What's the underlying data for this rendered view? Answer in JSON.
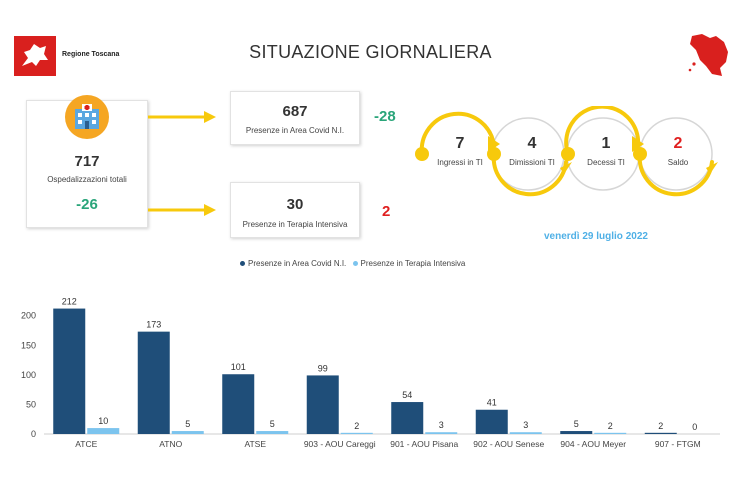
{
  "header": {
    "title": "SITUAZIONE GIORNALIERA",
    "logo_text": "Regione Toscana",
    "colors": {
      "logo_red": "#d9201e",
      "arrow_yellow": "#f7c90c",
      "dark_bar": "#1f4e79",
      "light_bar": "#7cc4ee"
    }
  },
  "total": {
    "value": "717",
    "label": "Ospedalizzazioni totali",
    "delta": "-26",
    "icon": "hospital-icon"
  },
  "covid_area": {
    "value": "687",
    "label": "Presenze in Area Covid N.I.",
    "delta": "-28"
  },
  "intensive": {
    "value": "30",
    "label": "Presenze in Terapia Intensiva",
    "delta": "2"
  },
  "flow": {
    "ingressi": {
      "value": "7",
      "label": "Ingressi in TI"
    },
    "dimissioni": {
      "value": "4",
      "label": "Dimissioni TI"
    },
    "decessi": {
      "value": "1",
      "label": "Decessi TI"
    },
    "saldo": {
      "value": "2",
      "label": "Saldo"
    }
  },
  "date": "venerdì 29 luglio 2022",
  "chart_data": {
    "type": "bar",
    "categories": [
      "ATCE",
      "ATNO",
      "ATSE",
      "903 - AOU Careggi",
      "901 - AOU Pisana",
      "902 - AOU Senese",
      "904 - AOU Meyer",
      "907 - FTGM"
    ],
    "series": [
      {
        "name": "Presenze in Area Covid N.I.",
        "color": "#1f4e79",
        "values": [
          212,
          173,
          101,
          99,
          54,
          41,
          5,
          2
        ]
      },
      {
        "name": "Presenze in Terapia Intensiva",
        "color": "#7cc4ee",
        "values": [
          10,
          5,
          5,
          2,
          3,
          3,
          2,
          0
        ]
      }
    ],
    "yticks": [
      "0",
      "50",
      "100",
      "150",
      "200"
    ],
    "ylim": [
      0,
      240
    ],
    "legend": "top-center",
    "grid": false
  }
}
